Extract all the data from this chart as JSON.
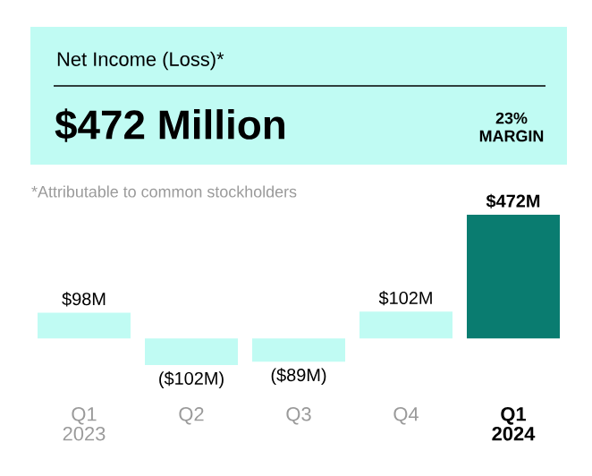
{
  "chart_data": {
    "type": "bar",
    "title": "Net Income (Loss)*",
    "subtitle": "$472 Million",
    "annotations": [
      "23% MARGIN",
      "*Attributable to common stockholders"
    ],
    "categories": [
      "Q1 2023",
      "Q2",
      "Q3",
      "Q4",
      "Q1 2024"
    ],
    "values": [
      98,
      -102,
      -89,
      102,
      472
    ],
    "value_labels": [
      "$98M",
      "($102M)",
      "($89M)",
      "$102M",
      "$472M"
    ],
    "colors": [
      "#c0fbf3",
      "#c0fbf3",
      "#c0fbf3",
      "#c0fbf3",
      "#0a7c70"
    ]
  }
}
